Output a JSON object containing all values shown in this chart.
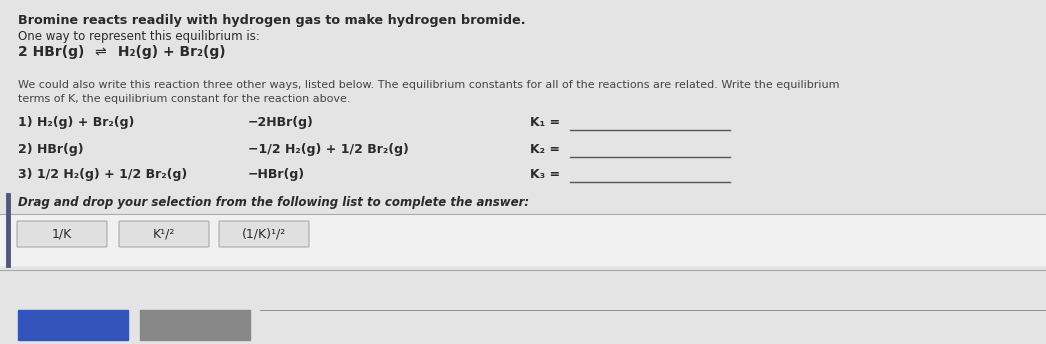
{
  "bg_color": "#e8e8e8",
  "content_bg": "#dcdcdc",
  "title_bold": "Bromine reacts readily with hydrogen gas to make hydrogen bromide.",
  "line2": "One way to represent this equilibrium is:",
  "line3_left": "2 HBr(g)",
  "line3_right": "H₂(g) + Br₂(g)",
  "para1": "We could also write this reaction three other ways, listed below. The equilibrium constants for all of the reactions are related. Write the equilibrium",
  "para2": "terms of K, the equilibrium constant for the reaction above.",
  "r1_left": "1) H₂(g) + Br₂(g)",
  "r1_right": "−2HBr(g)",
  "r1_k": "K₁ =",
  "r2_left": "2) HBr(g)",
  "r2_right": "−1/2 H₂(g) + 1/2 Br₂(g)",
  "r2_k": "K₂ =",
  "r3_left": "3) 1/2 H₂(g) + 1/2 Br₂(g)",
  "r3_right": "−HBr(g)",
  "r3_k": "K₃ =",
  "drag_label": "Drag and drop your selection from the following list to complete the answer:",
  "box1": "1/K",
  "box2": "K¹/²",
  "box3": "(1/K)¹/²",
  "text_color": "#2a2a2a",
  "text_color_light": "#444444",
  "bottom_bar_color": "#3355bb",
  "bottom_bar2_color": "#888888",
  "line_color": "#555555",
  "separator_color": "#aaaaaa",
  "left_bar_color": "#555577"
}
